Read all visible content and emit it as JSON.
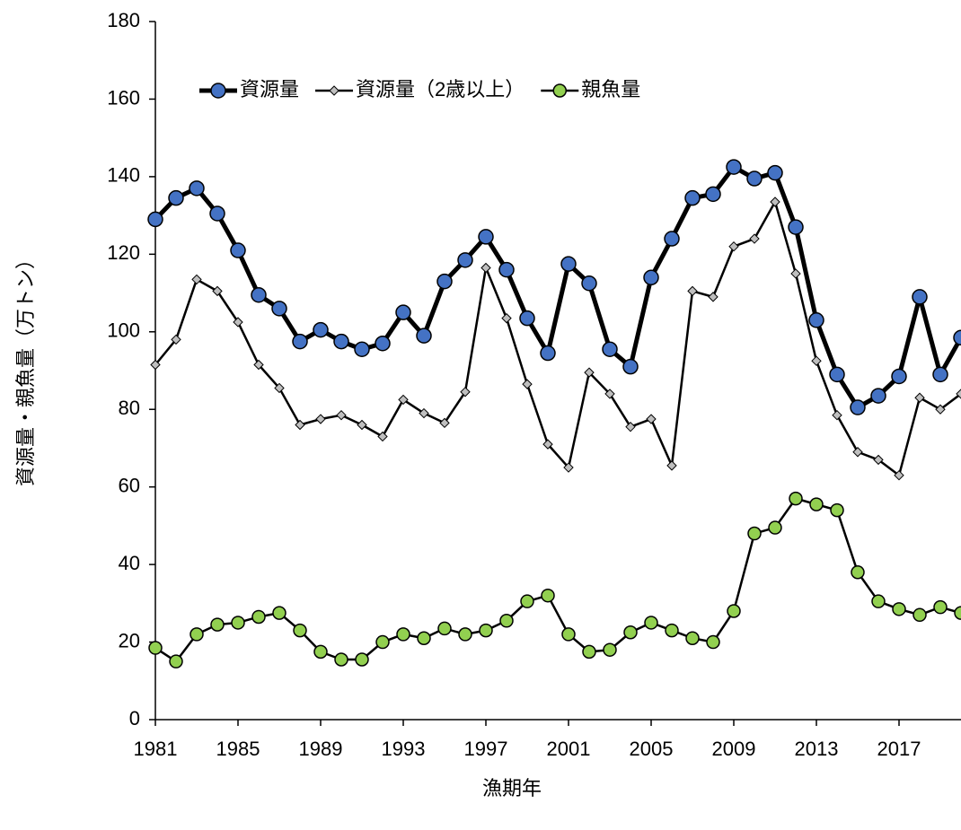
{
  "chart_data": {
    "type": "line",
    "xlabel": "漁期年",
    "ylabel": "資源量・親魚量（万トン）",
    "x": [
      1981,
      1982,
      1983,
      1984,
      1985,
      1986,
      1987,
      1988,
      1989,
      1990,
      1991,
      1992,
      1993,
      1994,
      1995,
      1996,
      1997,
      1998,
      1999,
      2000,
      2001,
      2002,
      2003,
      2004,
      2005,
      2006,
      2007,
      2008,
      2009,
      2010,
      2011,
      2012,
      2013,
      2014,
      2015,
      2016,
      2017,
      2018,
      2019,
      2020
    ],
    "series": [
      {
        "name": "資源量",
        "color": "#4472c4",
        "marker": "circle",
        "line_width": 5,
        "values": [
          129,
          134.5,
          137,
          130.5,
          121,
          109.5,
          106,
          97.5,
          100.5,
          97.5,
          95.5,
          97,
          105,
          99,
          113,
          118.5,
          124.5,
          116,
          103.5,
          94.5,
          117.5,
          112.5,
          95.5,
          91,
          114,
          124,
          134.5,
          135.5,
          142.5,
          139.5,
          141,
          127,
          103,
          89,
          80.5,
          83.5,
          88.5,
          109,
          89,
          98.5
        ]
      },
      {
        "name": "資源量（2歳以上）",
        "color": "#bfbfbf",
        "marker": "diamond",
        "line_width": 2.5,
        "values": [
          91.5,
          98,
          113.5,
          110.5,
          102.5,
          91.5,
          85.5,
          76,
          77.5,
          78.5,
          76,
          73,
          82.5,
          79,
          76.5,
          84.5,
          116.5,
          103.5,
          86.5,
          71,
          65,
          89.5,
          84,
          75.5,
          77.5,
          65.5,
          110.5,
          109,
          122,
          124,
          133.5,
          115,
          92.5,
          78.5,
          69,
          67,
          63,
          83,
          80,
          84
        ]
      },
      {
        "name": "親魚量",
        "color": "#92d050",
        "marker": "circle",
        "line_width": 2.5,
        "values": [
          18.5,
          15,
          22,
          24.5,
          25,
          26.5,
          27.5,
          23,
          17.5,
          15.5,
          15.5,
          20,
          22,
          21,
          23.5,
          22,
          23,
          25.5,
          30.5,
          32,
          22,
          17.5,
          18,
          22.5,
          25,
          23,
          21,
          20,
          28,
          48,
          49.5,
          57,
          55.5,
          54,
          38,
          30.5,
          28.5,
          27,
          29,
          27.5
        ]
      }
    ],
    "xlim": [
      1981,
      2020
    ],
    "xticks": [
      1981,
      1985,
      1989,
      1993,
      1997,
      2001,
      2005,
      2009,
      2013,
      2017
    ],
    "ylim": [
      0,
      180
    ],
    "yticks": [
      0,
      20,
      40,
      60,
      80,
      100,
      120,
      140,
      160,
      180
    ],
    "legend": "top-left"
  }
}
